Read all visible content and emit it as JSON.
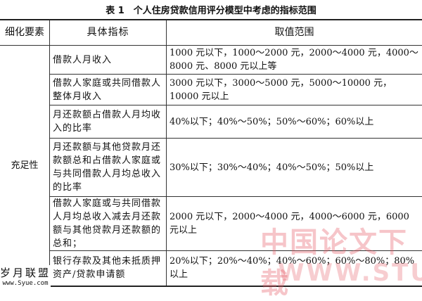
{
  "title": "表 1　个人住房贷款信用评分模型中考虑的指标范围",
  "headers": [
    "细化要素",
    "具体指标",
    "取值范围"
  ],
  "category": "充足性",
  "rows": [
    {
      "indicator": "借款人月收入",
      "range": "1000 元以下，1000～2000 元，2000～4000 元，4000～8000 元、8000 元以上等"
    },
    {
      "indicator": "借款人家庭或共同借款人整体月收入",
      "range": "3000 元以下，3000～5000 元，5000～10000 元，10000 元以上"
    },
    {
      "indicator": "月还款额占借款人月均收入的比率",
      "range": "40%以下；40%～50%；50%～60%；60%以上"
    },
    {
      "indicator": "月还款额与其他贷款月还款额总和占借款人家庭或与共同借款人月均总收入的比率",
      "range": "30%以下；30%～40%；40%～50%；50%以上"
    },
    {
      "indicator": "借款人家庭或与共同借款人月均总收入减去月还款额与其他贷款月还款额的总和；",
      "range": "2000 元以下，2000～4000 元，4000～6000 元，6000 元以上"
    },
    {
      "indicator": "银行存款及其他未抵质押资产/贷款申请额",
      "range": "20%以下；20%～40%；40%～60%；60%～80%；80%以上"
    }
  ],
  "watermarks": {
    "cn": "中国论文下载",
    "url": "WWW.STUDA.",
    "logo": "岁月联盟",
    "logo_url": "www.Syue.com"
  }
}
